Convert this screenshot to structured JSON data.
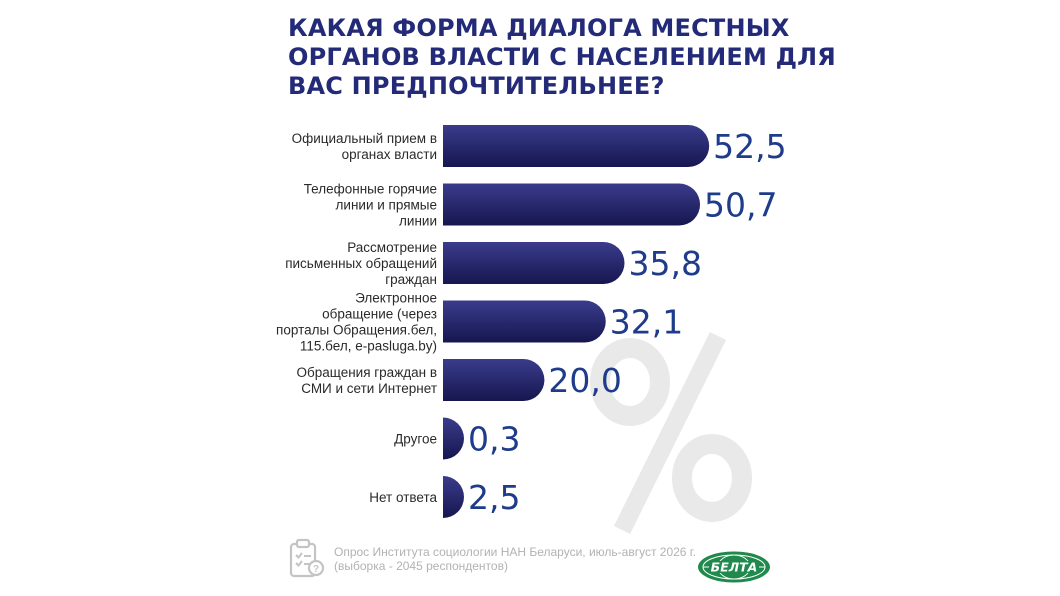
{
  "title_lines": [
    "КАКАЯ ФОРМА ДИАЛОГА МЕСТНЫХ",
    "ОРГАНОВ ВЛАСТИ С НАСЕЛЕНИЕМ ДЛЯ",
    "ВАС ПРЕДПОЧТИТЕЛЬНЕЕ?"
  ],
  "chart_data": {
    "type": "bar",
    "orientation": "horizontal",
    "title": "КАКАЯ ФОРМА ДИАЛОГА МЕСТНЫХ ОРГАНОВ ВЛАСТИ С НАСЕЛЕНИЕМ ДЛЯ ВАС ПРЕДПОЧТИТЕЛЬНЕЕ?",
    "categories": [
      [
        "Официальный прием в",
        "органах власти"
      ],
      [
        "Телефонные горячие",
        "линии и прямые",
        "линии"
      ],
      [
        "Рассмотрение",
        "письменных обращений",
        "граждан"
      ],
      [
        "Электронное",
        "обращение (через",
        "порталы Обращения.бел,",
        "115.бел, e-pasluga.by)"
      ],
      [
        "Обращения граждан в",
        "СМИ и сети Интернет"
      ],
      [
        "Другое"
      ],
      [
        "Нет ответа"
      ]
    ],
    "values": [
      52.5,
      50.7,
      35.8,
      32.1,
      20.0,
      0.3,
      2.5
    ],
    "value_labels": [
      "52,5",
      "50,7",
      "35,8",
      "32,1",
      "20,0",
      "0,3",
      "2,5"
    ],
    "bar_color": "#1b1b5e",
    "bar_gradient": [
      "#3a3c8c",
      "#16164f"
    ],
    "value_color": "#1f3c8a",
    "watermark_symbol": "%",
    "grid": false,
    "legend": "none"
  },
  "source_lines": [
    "Опрос Института социологии НАН Беларуси, июль-август 2026 г.",
    "(выборка - 2045 респондентов)"
  ],
  "logo_text": "БЕЛТА",
  "colors": {
    "title": "#232a78",
    "logo_green": "#1f8a4c",
    "source_text": "#b2b2b2"
  }
}
